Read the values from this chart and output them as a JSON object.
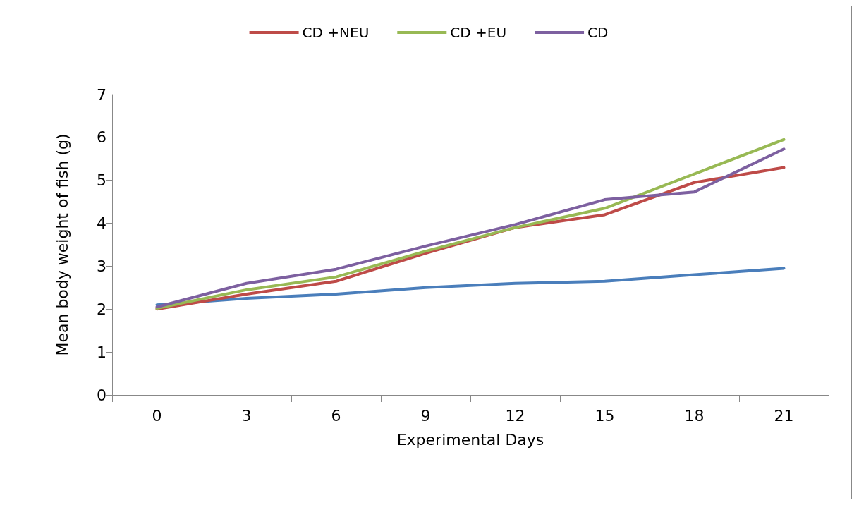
{
  "chart_data": {
    "type": "line",
    "xlabel": "Experimental Days",
    "ylabel": "Mean body weight of fish (g)",
    "categories": [
      "0",
      "3",
      "6",
      "9",
      "12",
      "15",
      "18",
      "21"
    ],
    "series": [
      {
        "color": "#4a7ebb",
        "values": [
          2.1,
          2.25,
          2.35,
          2.5,
          2.6,
          2.65,
          2.8,
          2.95
        ]
      },
      {
        "name": "CD +NEU",
        "color": "#be4b48",
        "values": [
          2.0,
          2.35,
          2.65,
          3.3,
          3.9,
          4.2,
          4.95,
          5.3
        ]
      },
      {
        "name": "CD +EU",
        "color": "#98b954",
        "values": [
          2.02,
          2.45,
          2.75,
          3.35,
          3.9,
          4.35,
          5.15,
          5.95
        ]
      },
      {
        "name": "CD",
        "color": "#7d60a0",
        "values": [
          2.05,
          2.6,
          2.93,
          3.47,
          3.97,
          4.55,
          4.73,
          5.73
        ]
      }
    ],
    "ylim": [
      0,
      7
    ],
    "yticks": [
      0,
      1,
      2,
      3,
      4,
      5,
      6,
      7
    ],
    "grid": false,
    "legend": "top",
    "marker": "none",
    "line_style": "solid"
  }
}
